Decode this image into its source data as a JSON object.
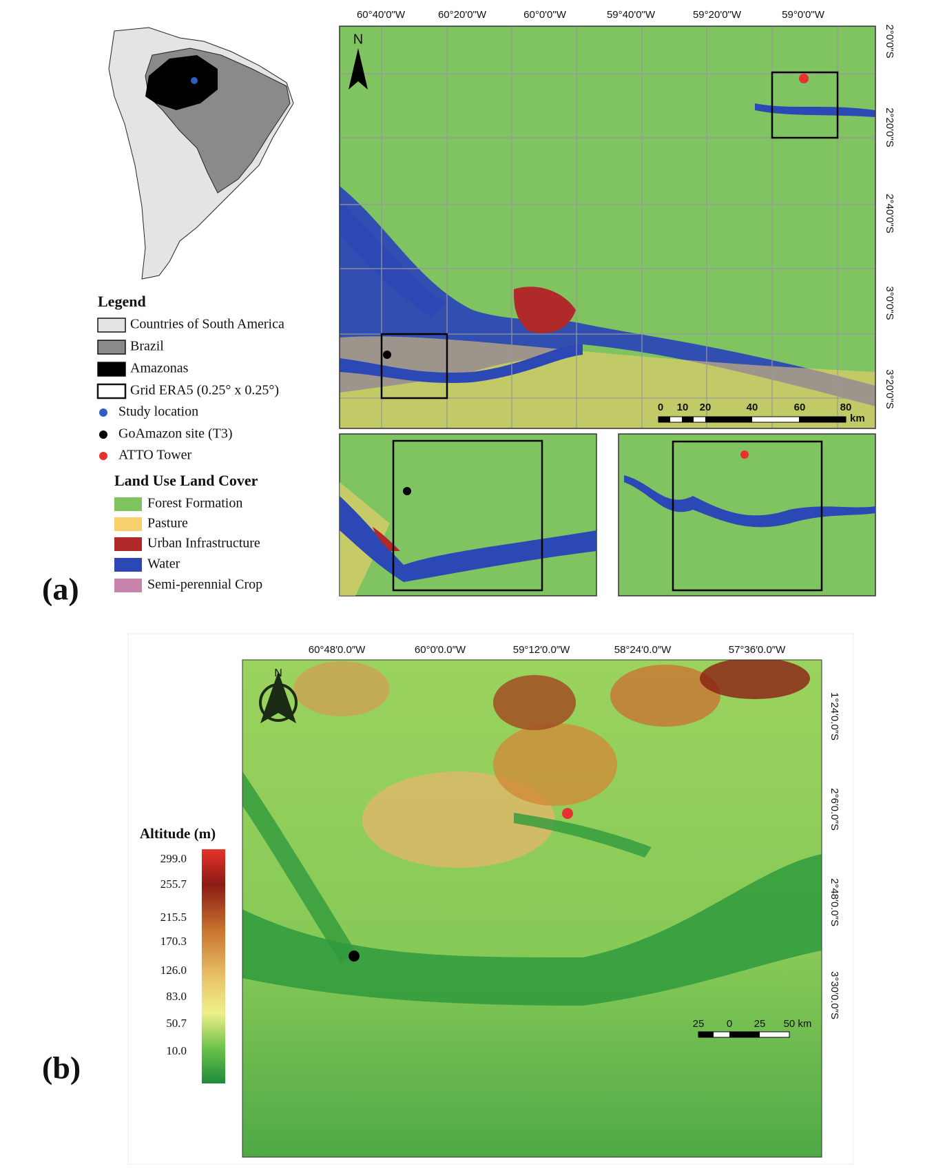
{
  "panel_a": {
    "label": "(a)",
    "locator_legend": {
      "title": "Legend",
      "items": [
        "Countries of South America",
        "Brazil",
        "Amazonas",
        "Grid ERA5 (0.25° x 0.25°)",
        "Study location",
        "GoAmazon site (T3)",
        "ATTO Tower"
      ]
    },
    "lulc_legend": {
      "title": "Land Use Land Cover",
      "items": [
        "Forest Formation",
        "Pasture",
        "Urban Infrastructure",
        "Water",
        "Semi-perennial Crop"
      ]
    },
    "map": {
      "north": "N",
      "longitudes": [
        "60°40'0\"W",
        "60°20'0\"W",
        "60°0'0\"W",
        "59°40'0\"W",
        "59°20'0\"W",
        "59°0'0\"W"
      ],
      "latitudes": [
        "2°0'0\"S",
        "2°20'0\"S",
        "2°40'0\"S",
        "3°0'0\"S",
        "3°20'0\"S"
      ],
      "scale_bar": [
        "0",
        "10",
        "20",
        "40",
        "60",
        "80"
      ],
      "scale_unit": "km"
    }
  },
  "panel_b": {
    "label": "(b)",
    "north": "N",
    "longitudes": [
      "60°48′0.0″W",
      "60°0′0.0″W",
      "59°12′0.0″W",
      "58°24′0.0″W",
      "57°36′0.0″W"
    ],
    "latitudes": [
      "1°24′0.0″S",
      "2°6′0.0″S",
      "2°48′0.0″S",
      "3°30′0.0″S"
    ],
    "colorbar": {
      "title": "Altitude (m)",
      "labels": [
        "299.0",
        "255.7",
        "215.5",
        "170.3",
        "126.0",
        "83.0",
        "50.7",
        "10.0"
      ]
    },
    "scale_bar": [
      "25",
      "0",
      "25",
      "50 km"
    ]
  }
}
